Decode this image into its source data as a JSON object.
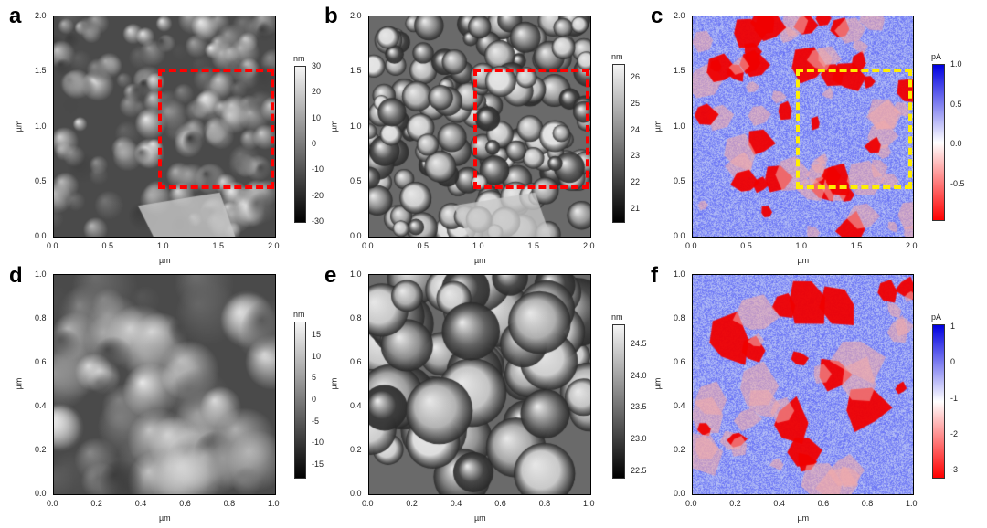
{
  "chart_data": [
    {
      "type": "heatmap",
      "panel": "a",
      "xlabel": "µm",
      "ylabel": "µm",
      "xticks": [
        "0.0",
        "0.5",
        "1.0",
        "1.5",
        "2.0"
      ],
      "yticks": [
        "0.0",
        "0.5",
        "1.0",
        "1.5",
        "2.0"
      ],
      "xlim": [
        0,
        2
      ],
      "ylim": [
        0,
        2
      ],
      "colorbar": {
        "unit": "nm",
        "ticks": [
          "30",
          "20",
          "10",
          "0",
          "-10",
          "-20",
          "-30"
        ],
        "range": [
          -30,
          30
        ],
        "colormap": "gray"
      },
      "roi": {
        "x": [
          0.95,
          2.0
        ],
        "y": [
          0.42,
          1.52
        ],
        "color": "#ff0000"
      }
    },
    {
      "type": "heatmap",
      "panel": "b",
      "xlabel": "µm",
      "ylabel": "µm",
      "xticks": [
        "0.0",
        "0.5",
        "1.0",
        "1.5",
        "2.0"
      ],
      "yticks": [
        "0.0",
        "0.5",
        "1.0",
        "1.5",
        "2.0"
      ],
      "xlim": [
        0,
        2
      ],
      "ylim": [
        0,
        2
      ],
      "colorbar": {
        "unit": "nm",
        "ticks": [
          "26",
          "25",
          "24",
          "23",
          "22",
          "21"
        ],
        "range": [
          20.5,
          26.5
        ],
        "colormap": "gray"
      },
      "roi": {
        "x": [
          0.95,
          2.0
        ],
        "y": [
          0.42,
          1.52
        ],
        "color": "#ff0000"
      }
    },
    {
      "type": "heatmap",
      "panel": "c",
      "xlabel": "µm",
      "ylabel": "µm",
      "xticks": [
        "0.0",
        "0.5",
        "1.0",
        "1.5",
        "2.0"
      ],
      "yticks": [
        "0.0",
        "0.5",
        "1.0",
        "1.5",
        "2.0"
      ],
      "xlim": [
        0,
        2
      ],
      "ylim": [
        0,
        2
      ],
      "colorbar": {
        "unit": "pA",
        "ticks": [
          "1.0",
          "0.5",
          "0.0",
          "-0.5"
        ],
        "range": [
          -0.95,
          1.0
        ],
        "colormap": "red-white-blue"
      },
      "roi": {
        "x": [
          0.95,
          2.0
        ],
        "y": [
          0.42,
          1.52
        ],
        "color": "#ffee00"
      }
    },
    {
      "type": "heatmap",
      "panel": "d",
      "xlabel": "µm",
      "ylabel": "µm",
      "xticks": [
        "0.0",
        "0.2",
        "0.4",
        "0.6",
        "0.8",
        "1.0"
      ],
      "yticks": [
        "0.0",
        "0.2",
        "0.4",
        "0.6",
        "0.8",
        "1.0"
      ],
      "xlim": [
        0,
        1
      ],
      "ylim": [
        0,
        1
      ],
      "colorbar": {
        "unit": "nm",
        "ticks": [
          "15",
          "10",
          "5",
          "0",
          "-5",
          "-10",
          "-15"
        ],
        "range": [
          -18,
          18
        ],
        "colormap": "gray"
      }
    },
    {
      "type": "heatmap",
      "panel": "e",
      "xlabel": "µm",
      "ylabel": "µm",
      "xticks": [
        "0.0",
        "0.2",
        "0.4",
        "0.6",
        "0.8",
        "1.0"
      ],
      "yticks": [
        "0.0",
        "0.2",
        "0.4",
        "0.6",
        "0.8",
        "1.0"
      ],
      "xlim": [
        0,
        1
      ],
      "ylim": [
        0,
        1
      ],
      "colorbar": {
        "unit": "nm",
        "ticks": [
          "24.5",
          "24.0",
          "23.5",
          "23.0",
          "22.5"
        ],
        "range": [
          22.4,
          24.8
        ],
        "colormap": "gray"
      }
    },
    {
      "type": "heatmap",
      "panel": "f",
      "xlabel": "µm",
      "ylabel": "µm",
      "xticks": [
        "0.0",
        "0.2",
        "0.4",
        "0.6",
        "0.8",
        "1.0"
      ],
      "yticks": [
        "0.0",
        "0.2",
        "0.4",
        "0.6",
        "0.8",
        "1.0"
      ],
      "xlim": [
        0,
        1
      ],
      "ylim": [
        0,
        1
      ],
      "colorbar": {
        "unit": "pA",
        "ticks": [
          "1",
          "0",
          "-1",
          "-2",
          "-3"
        ],
        "range": [
          -3.2,
          1.05
        ],
        "colormap": "red-white-blue"
      }
    }
  ]
}
